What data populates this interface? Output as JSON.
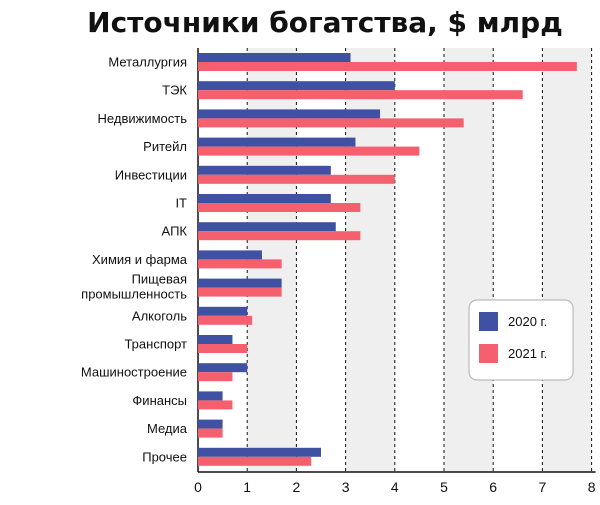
{
  "chart_data": {
    "type": "bar",
    "orientation": "horizontal",
    "title": "Источники богатства, $ млрд",
    "xlabel": "",
    "ylabel": "",
    "xlim": [
      0,
      8
    ],
    "xticks": [
      0,
      1,
      2,
      3,
      4,
      5,
      6,
      7,
      8
    ],
    "grid": "vertical dashed, alternating shaded columns",
    "legend_position": "right",
    "categories": [
      "Металлургия",
      "ТЭК",
      "Недвижимость",
      "Ритейл",
      "Инвестиции",
      "IT",
      "АПК",
      "Химия и фарма",
      "Пищевая промышленность",
      "Алкоголь",
      "Транспорт",
      "Машиностроение",
      "Финансы",
      "Медиа",
      "Прочее"
    ],
    "series": [
      {
        "name": "2020 г.",
        "color": "#3f51a3",
        "values": [
          3.1,
          4.0,
          3.7,
          3.2,
          2.7,
          2.7,
          2.8,
          1.3,
          1.7,
          1.0,
          0.7,
          1.0,
          0.5,
          0.5,
          2.5
        ]
      },
      {
        "name": "2021 г.",
        "color": "#f4606e",
        "values": [
          7.7,
          6.6,
          5.4,
          4.5,
          4.0,
          3.3,
          3.3,
          1.7,
          1.7,
          1.1,
          1.0,
          0.7,
          0.7,
          0.5,
          2.3
        ]
      }
    ]
  }
}
